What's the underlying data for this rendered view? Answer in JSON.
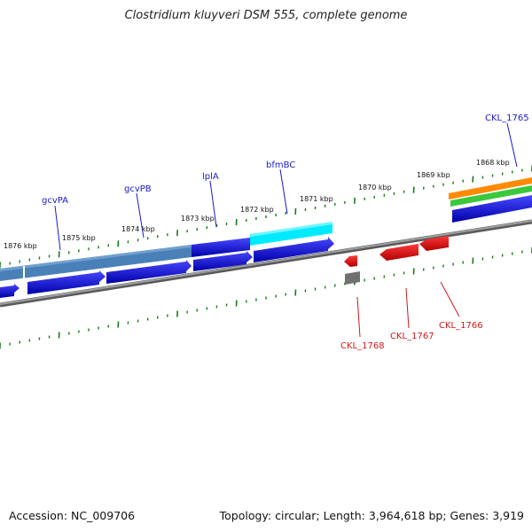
{
  "title": "Clostridium kluyveri DSM 555, complete genome",
  "footer": {
    "accession": "Accession: NC_009706",
    "topology": "Topology: circular; Length: 3,964,618 bp; Genes: 3,919"
  },
  "colors": {
    "tick": "#1a7a1a",
    "backbone": "#808080",
    "forward_gene": "#1010e0",
    "operon": "#4a80b8",
    "fused": "#00e8ff",
    "reverse_gene": "#e00000",
    "gray_feature": "#707070",
    "orange_feature": "#ff8a00",
    "green_feature": "#3cc83c",
    "forward_label": "#1a1acc",
    "reverse_label": "#cc1a1a"
  },
  "scale_labels": [
    "1876 kbp",
    "1875 kbp",
    "1874 kbp",
    "1873 kbp",
    "1872 kbp",
    "1871 kbp",
    "1870 kbp",
    "1869 kbp",
    "1868 kbp"
  ],
  "forward_gene_labels": [
    "gcvPA",
    "gcvPB",
    "lplA",
    "bfmBC",
    "CKL_1765"
  ],
  "reverse_gene_labels": [
    "CKL_1768",
    "CKL_1767",
    "CKL_1766"
  ]
}
